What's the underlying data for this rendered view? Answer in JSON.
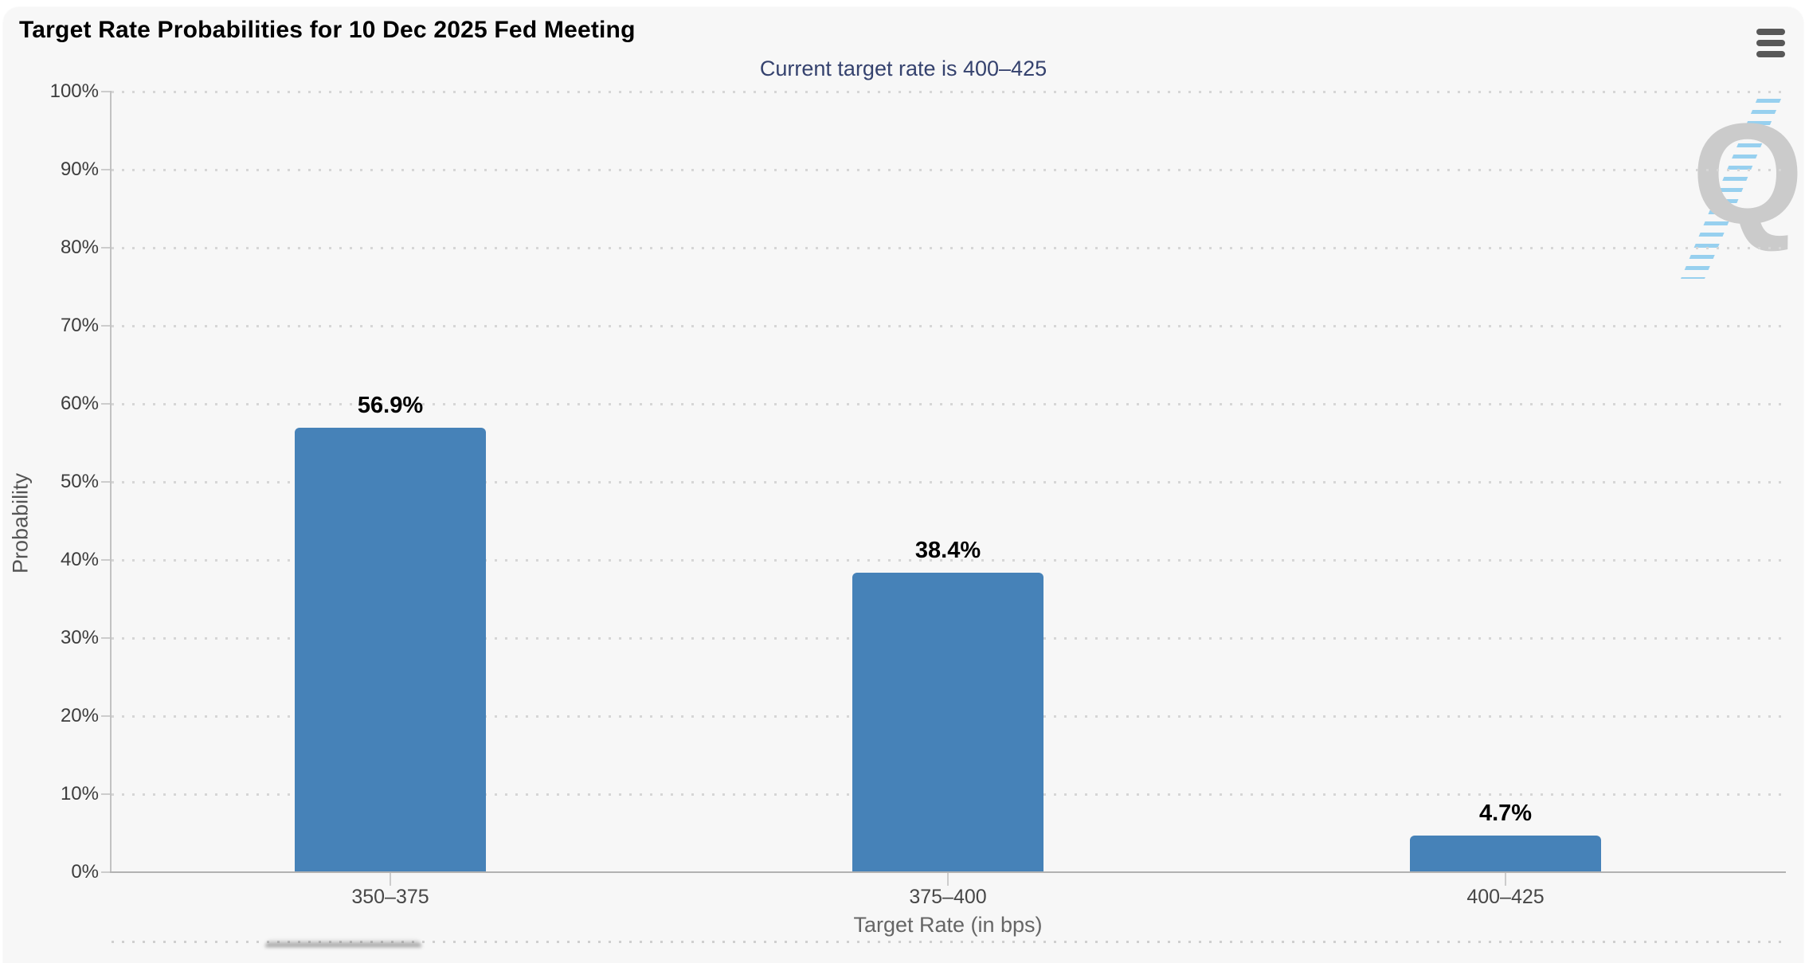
{
  "header": {
    "title": "Target Rate Probabilities for 10 Dec 2025 Fed Meeting",
    "subtitle": "Current target rate is 400–425"
  },
  "menu": {
    "icon": "hamburger-menu-icon"
  },
  "watermark": {
    "letter": "Q"
  },
  "chart_data": {
    "type": "bar",
    "title": "Target Rate Probabilities for 10 Dec 2025 Fed Meeting",
    "subtitle": "Current target rate is 400–425",
    "categories": [
      "350–375",
      "375–400",
      "400–425"
    ],
    "values": [
      56.9,
      38.4,
      4.7
    ],
    "value_labels": [
      "56.9%",
      "38.4%",
      "4.7%"
    ],
    "xlabel": "Target Rate (in bps)",
    "ylabel": "Probability",
    "ylim": [
      0,
      100
    ],
    "ytick_step": 10,
    "ytick_suffix": "%",
    "grid": "dotted-horizontal",
    "legend": "none",
    "bar_color": "#4682b8",
    "colors": {
      "background": "#f7f7f7",
      "subtitle_text": "#35426e",
      "axis_line": "#c2c2c2",
      "gridline": "#d6d6d6",
      "data_label": "#000000"
    }
  }
}
